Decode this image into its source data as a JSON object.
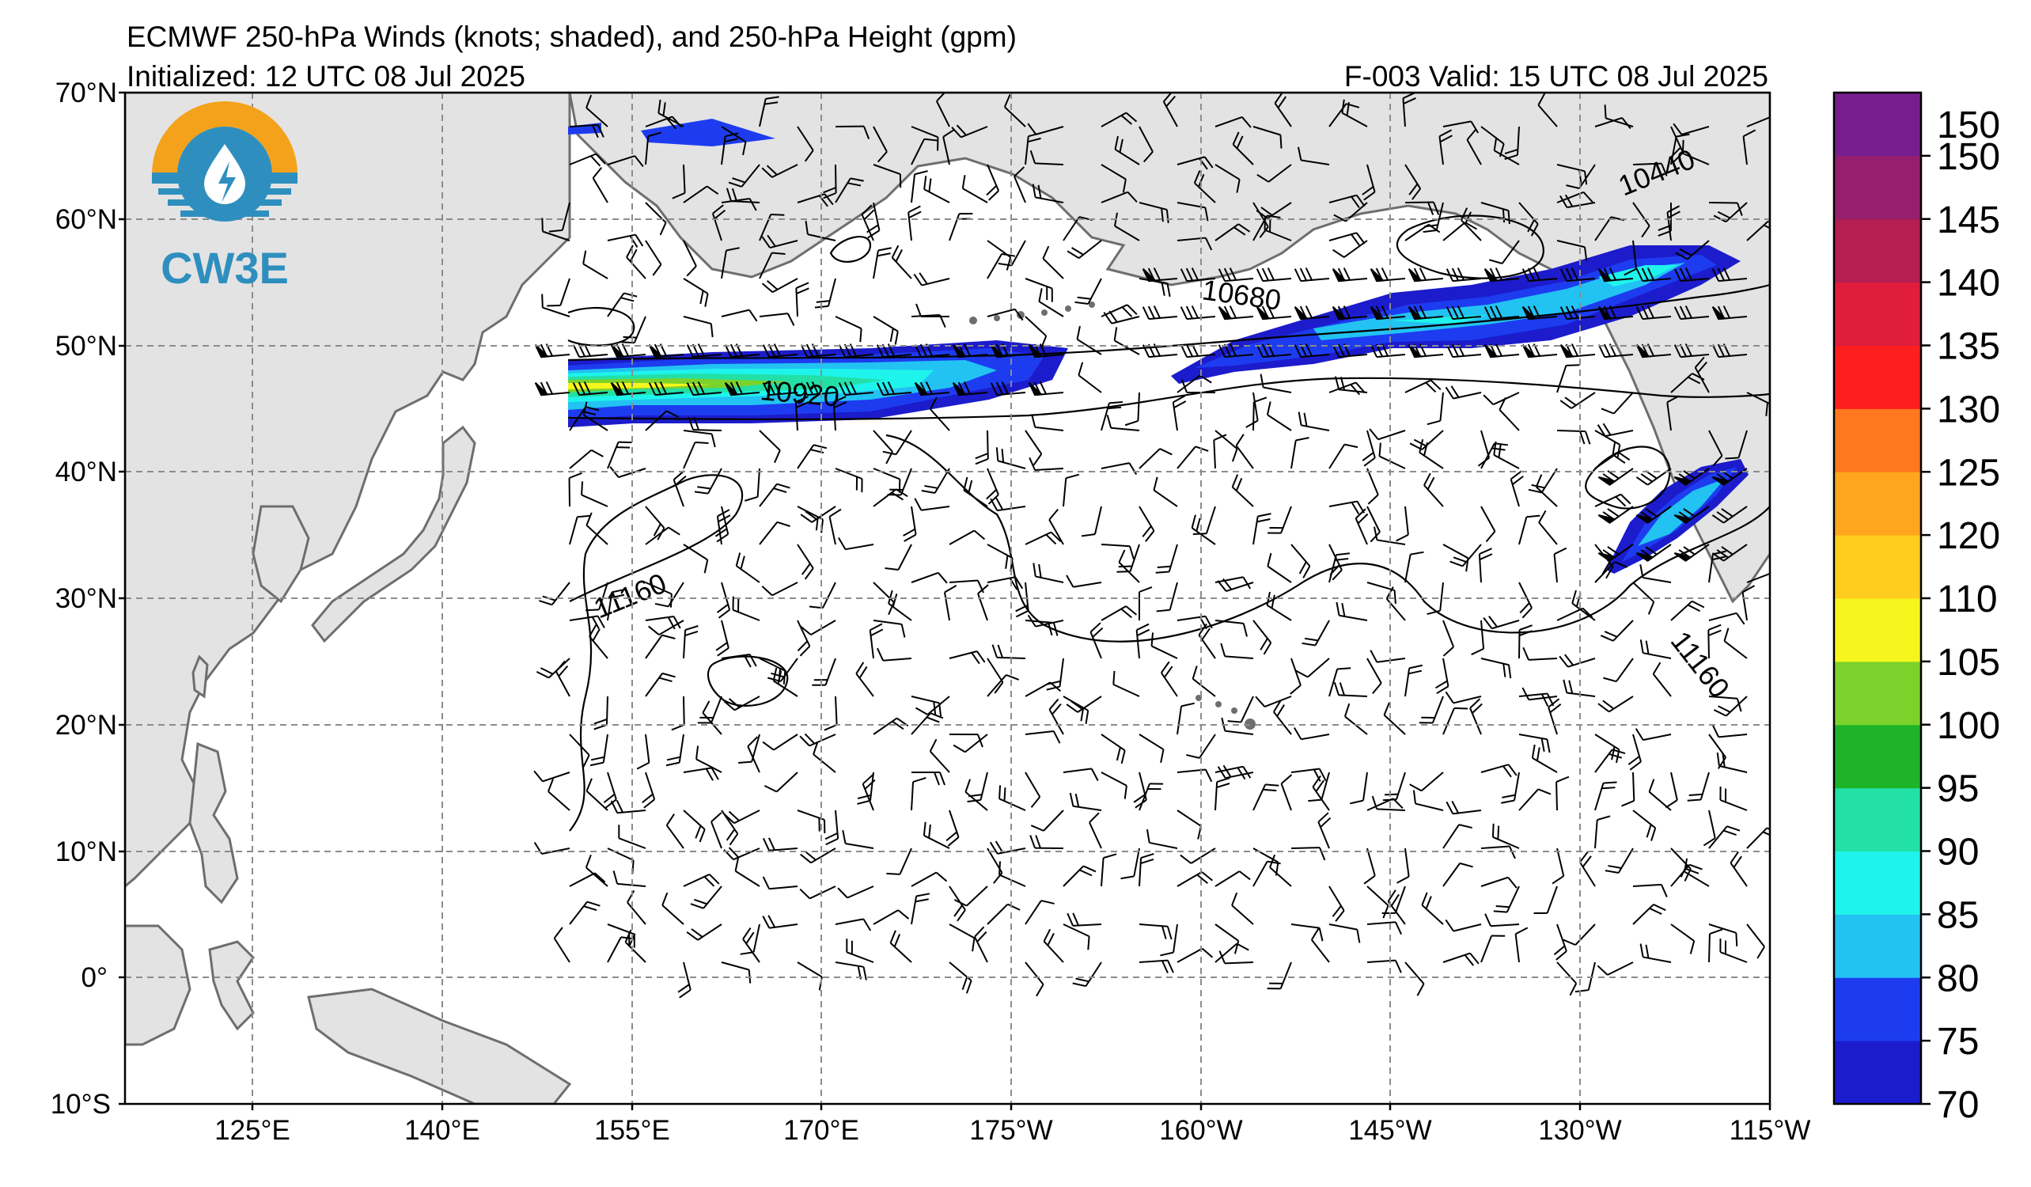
{
  "header": {
    "title": "ECMWF 250-hPa Winds (knots; shaded), and 250-hPa Height (gpm)",
    "initialized": "Initialized: 12 UTC 08 Jul 2025",
    "valid": "F-003  Valid: 15 UTC 08 Jul 2025"
  },
  "logo": {
    "text": "CW3E"
  },
  "map": {
    "lat_range": [
      -10,
      70
    ],
    "lon_range": [
      110,
      245
    ],
    "lat_labels": [
      "70°N",
      "60°N",
      "50°N",
      "40°N",
      "30°N",
      "20°N",
      "10°N",
      "0°",
      "10°S"
    ],
    "lon_labels": [
      "125°E",
      "140°E",
      "155°E",
      "170°E",
      "175°W",
      "160°W",
      "145°W",
      "130°W",
      "115°W"
    ],
    "contour_labels": [
      "10440",
      "10680",
      "10920",
      "11160",
      "11160"
    ],
    "colors": {
      "land": "#e3e3e3",
      "coast": "#6e6e6e",
      "grid": "#8c8c8c"
    }
  },
  "colorbar": {
    "levels": [
      {
        "label": "70",
        "color": "#1c1ccc"
      },
      {
        "label": "75",
        "color": "#1d3cf0"
      },
      {
        "label": "80",
        "color": "#22c3f2"
      },
      {
        "label": "85",
        "color": "#1ef4ec"
      },
      {
        "label": "90",
        "color": "#22e0a6"
      },
      {
        "label": "95",
        "color": "#1eb42a"
      },
      {
        "label": "100",
        "color": "#7cd22a"
      },
      {
        "label": "105",
        "color": "#f6f61e"
      },
      {
        "label": "110",
        "color": "#ffcd1e"
      },
      {
        "label": "120",
        "color": "#ffa61e"
      },
      {
        "label": "125",
        "color": "#ff781e"
      },
      {
        "label": "130",
        "color": "#ff1e1e"
      },
      {
        "label": "135",
        "color": "#e01e3c"
      },
      {
        "label": "140",
        "color": "#b41e50"
      },
      {
        "label": "145",
        "color": "#961e6e"
      },
      {
        "label": "150",
        "color": "#781e8c"
      }
    ],
    "top_label": "150"
  }
}
